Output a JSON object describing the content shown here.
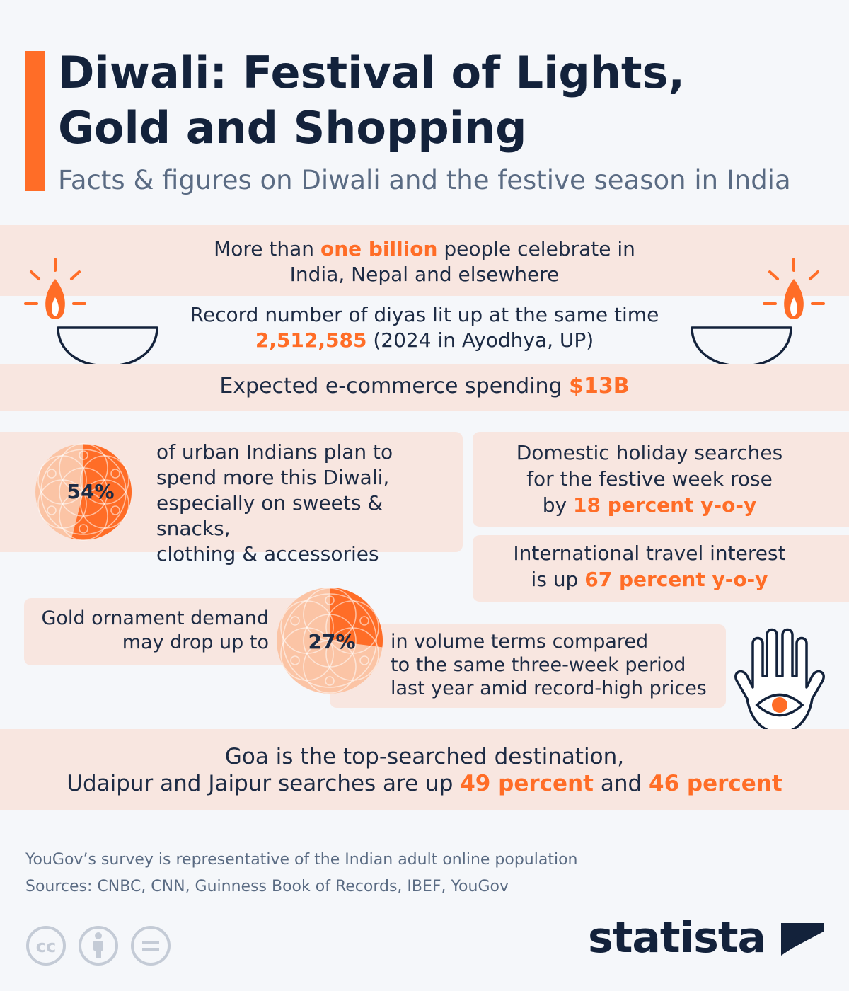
{
  "header": {
    "title_line1": "Diwali: Festival of Lights,",
    "title_line2": "Gold and Shopping",
    "subtitle": "Facts & figures on Diwali and the festive season in India"
  },
  "facts": {
    "celebrate": {
      "pre": "More than ",
      "highlight": "one billion",
      "post": " people celebrate in",
      "line2": "India, Nepal and elsewhere"
    },
    "diyas": {
      "line1": "Record number of diyas lit up at the same time",
      "highlight": "2,512,585",
      "post": " (2024 in Ayodhya, UP)"
    },
    "ecommerce": {
      "pre": "Expected e-commerce spending ",
      "highlight": "$13B"
    },
    "urban_spend": {
      "value": "54%",
      "fraction": 0.54,
      "line1": "of urban Indians plan to",
      "line2": "spend more this Diwali,",
      "line3": "especially on sweets & snacks,",
      "line4": "clothing & accessories"
    },
    "domestic": {
      "line1": "Domestic holiday searches",
      "line2": "for the festive week rose",
      "line3_pre": "by ",
      "highlight": "18 percent y-o-y"
    },
    "international": {
      "line1": "International travel interest",
      "line2_pre": "is up ",
      "highlight": "67 percent y-o-y"
    },
    "gold": {
      "line1": "Gold ornament demand",
      "line2": "may drop up to",
      "value": "27%",
      "fraction": 0.27,
      "after1": "in volume terms compared",
      "after2": "to the same three-week period",
      "after3": "last year amid record-high prices"
    },
    "goa": {
      "line1": "Goa is the top-searched destination,",
      "line2_pre": "Udaipur and Jaipur searches are up ",
      "hl1": "49 percent",
      "mid": " and ",
      "hl2": "46 percent"
    }
  },
  "footer": {
    "note": "YouGov’s survey is representative of the Indian adult online population",
    "sources": "Sources: CNBC, CNN, Guinness Book of Records, IBEF, YouGov",
    "brand": "statista"
  },
  "colors": {
    "accent": "#ff6d27",
    "navy": "#13223b",
    "band": "#f8e6e0",
    "background": "#f5f7fa"
  },
  "icons": [
    "diya-lamp-icon",
    "hamsa-hand-icon",
    "creative-commons-icon",
    "attribution-icon",
    "no-derivatives-icon",
    "statista-logo-icon"
  ]
}
